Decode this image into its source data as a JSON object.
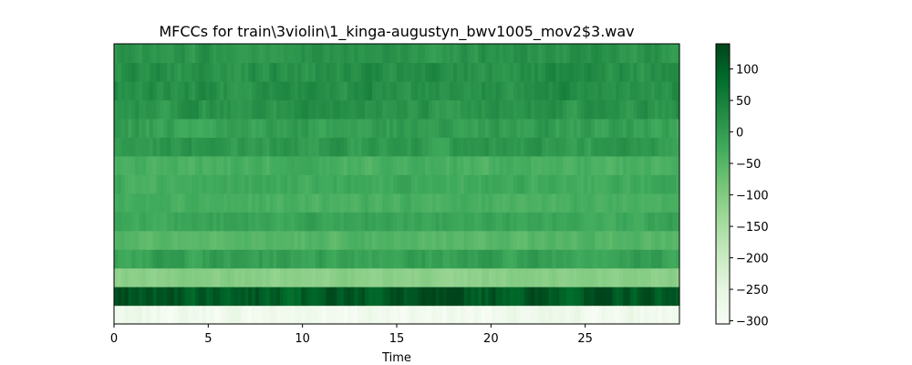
{
  "chart_data": {
    "type": "heatmap",
    "title": "MFCCs for train\\3violin\\1_kinga-augustyn_bwv1005_mov2$3.wav",
    "xlabel": "Time",
    "ylabel": "",
    "xlim": [
      0,
      30
    ],
    "x_ticks": [
      0,
      5,
      10,
      15,
      20,
      25
    ],
    "x_tick_labels": [
      "0",
      "5",
      "10",
      "15",
      "20",
      "25"
    ],
    "y_ticks_shown": false,
    "colormap": "Greens",
    "colorbar": {
      "range": [
        -305,
        140
      ],
      "ticks": [
        100,
        50,
        0,
        -50,
        -100,
        -150,
        -200,
        -250,
        -300
      ],
      "tick_labels": [
        "100",
        "50",
        "0",
        "−50",
        "−100",
        "−150",
        "−200",
        "−250",
        "−300"
      ]
    },
    "coefficient_bands_bottom_to_top": [
      {
        "coefficient": 0,
        "mean": -285
      },
      {
        "coefficient": 1,
        "mean": 115
      },
      {
        "coefficient": 2,
        "mean": -110
      },
      {
        "coefficient": 3,
        "mean": -5
      },
      {
        "coefficient": 4,
        "mean": -50
      },
      {
        "coefficient": 5,
        "mean": -15
      },
      {
        "coefficient": 6,
        "mean": -35
      },
      {
        "coefficient": 7,
        "mean": -25
      },
      {
        "coefficient": 8,
        "mean": -35
      },
      {
        "coefficient": 9,
        "mean": 5
      },
      {
        "coefficient": 10,
        "mean": -5
      },
      {
        "coefficient": 11,
        "mean": 15
      },
      {
        "coefficient": 12,
        "mean": 25
      },
      {
        "coefficient": 13,
        "mean": 20
      },
      {
        "coefficient": 14,
        "mean": 15
      }
    ]
  }
}
